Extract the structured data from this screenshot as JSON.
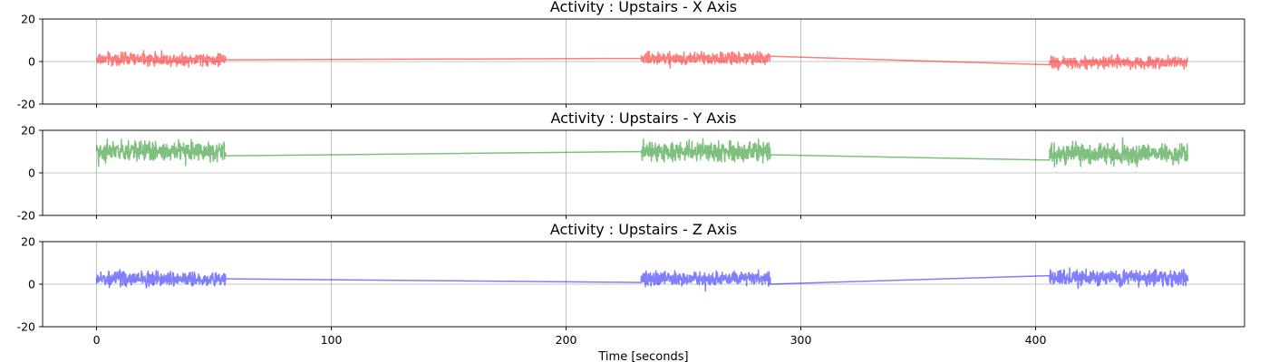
{
  "chart_data": [
    {
      "type": "line",
      "title": "Activity : Upstairs - X Axis",
      "xlabel": "",
      "ylabel": "",
      "xlim": [
        -23,
        489
      ],
      "ylim": [
        -20,
        20
      ],
      "grid": true,
      "color": "#ff0000",
      "series": [
        {
          "segments": [
            {
              "x_start": 0,
              "x_end": 55,
              "center": 1.0,
              "amplitude": 3.5
            },
            {
              "x_start": 232,
              "x_end": 287,
              "center": 1.5,
              "amplitude": 3.5
            },
            {
              "x_start": 406,
              "x_end": 465,
              "center": -0.5,
              "amplitude": 3.5
            }
          ],
          "connectors": [
            {
              "x": [
                55,
                232
              ],
              "y": [
                0.8,
                1.5
              ]
            },
            {
              "x": [
                287,
                406
              ],
              "y": [
                2.5,
                -1.5
              ]
            }
          ]
        }
      ]
    },
    {
      "type": "line",
      "title": "Activity : Upstairs - Y Axis",
      "xlabel": "",
      "ylabel": "",
      "xlim": [
        -23,
        489
      ],
      "ylim": [
        -20,
        20
      ],
      "grid": true,
      "color": "#008000",
      "series": [
        {
          "segments": [
            {
              "x_start": 0,
              "x_end": 55,
              "center": 10.0,
              "amplitude": 5.5
            },
            {
              "x_start": 232,
              "x_end": 287,
              "center": 10.0,
              "amplitude": 5.5
            },
            {
              "x_start": 406,
              "x_end": 465,
              "center": 9.0,
              "amplitude": 5.5
            }
          ],
          "connectors": [
            {
              "x": [
                55,
                232
              ],
              "y": [
                8.0,
                10.0
              ]
            },
            {
              "x": [
                287,
                406
              ],
              "y": [
                8.5,
                6.0
              ]
            }
          ]
        }
      ]
    },
    {
      "type": "line",
      "title": "Activity : Upstairs - Z Axis",
      "xlabel": "Time [seconds]",
      "ylabel": "",
      "xlim": [
        -23,
        489
      ],
      "ylim": [
        -20,
        20
      ],
      "grid": true,
      "color": "#0000ff",
      "series": [
        {
          "segments": [
            {
              "x_start": 0,
              "x_end": 55,
              "center": 2.5,
              "amplitude": 4.0
            },
            {
              "x_start": 232,
              "x_end": 287,
              "center": 2.5,
              "amplitude": 4.0
            },
            {
              "x_start": 406,
              "x_end": 465,
              "center": 3.0,
              "amplitude": 4.5
            }
          ],
          "connectors": [
            {
              "x": [
                55,
                232
              ],
              "y": [
                2.5,
                0.8
              ]
            },
            {
              "x": [
                287,
                406
              ],
              "y": [
                0.0,
                4.0
              ]
            }
          ]
        }
      ]
    }
  ],
  "x_ticks": [
    0,
    100,
    200,
    300,
    400
  ],
  "y_ticks": [
    -20,
    0,
    20
  ]
}
